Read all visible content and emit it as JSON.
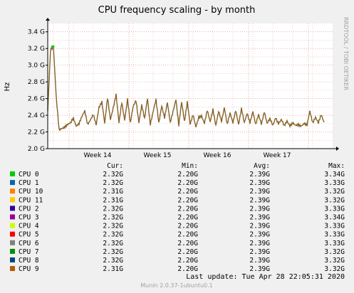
{
  "chart_data": {
    "type": "line",
    "title": "CPU frequency scaling - by month",
    "ylabel": "Hz",
    "side_label": "RRDTOOL / TOBI OETIKER",
    "ylim": [
      2.0,
      3.5
    ],
    "yticks": [
      {
        "value": 2.0,
        "label": "2.0 G"
      },
      {
        "value": 2.2,
        "label": "2.2 G"
      },
      {
        "value": 2.4,
        "label": "2.4 G"
      },
      {
        "value": 2.6,
        "label": "2.6 G"
      },
      {
        "value": 2.8,
        "label": "2.8 G"
      },
      {
        "value": 3.0,
        "label": "3.0 G"
      },
      {
        "value": 3.2,
        "label": "3.2 G"
      },
      {
        "value": 3.4,
        "label": "3.4 G"
      }
    ],
    "xticks": [
      "Week 14",
      "Week 15",
      "Week 16",
      "Week 17"
    ],
    "grid": true,
    "series_color": "#8a5a1e",
    "profile": [
      [
        0,
        2.45
      ],
      [
        1,
        3.2
      ],
      [
        2,
        3.22
      ],
      [
        3,
        2.6
      ],
      [
        4,
        2.22
      ],
      [
        5,
        2.25
      ],
      [
        8,
        2.3
      ],
      [
        9,
        2.37
      ],
      [
        10,
        2.28
      ],
      [
        11,
        2.3
      ],
      [
        13,
        2.45
      ],
      [
        14,
        2.3
      ],
      [
        16,
        2.4
      ],
      [
        17,
        2.28
      ],
      [
        18,
        2.5
      ],
      [
        19,
        2.57
      ],
      [
        20,
        2.3
      ],
      [
        21,
        2.6
      ],
      [
        22,
        2.35
      ],
      [
        23,
        2.5
      ],
      [
        24,
        2.65
      ],
      [
        25,
        2.3
      ],
      [
        26,
        2.55
      ],
      [
        27,
        2.35
      ],
      [
        28,
        2.6
      ],
      [
        29,
        2.3
      ],
      [
        30,
        2.5
      ],
      [
        31,
        2.58
      ],
      [
        32,
        2.32
      ],
      [
        33,
        2.52
      ],
      [
        34,
        2.35
      ],
      [
        35,
        2.6
      ],
      [
        36,
        2.3
      ],
      [
        37,
        2.45
      ],
      [
        38,
        2.58
      ],
      [
        39,
        2.3
      ],
      [
        40,
        2.52
      ],
      [
        41,
        2.38
      ],
      [
        42,
        2.55
      ],
      [
        43,
        2.3
      ],
      [
        44,
        2.45
      ],
      [
        45,
        2.6
      ],
      [
        46,
        2.28
      ],
      [
        47,
        2.55
      ],
      [
        48,
        2.32
      ],
      [
        49,
        2.57
      ],
      [
        50,
        2.3
      ],
      [
        51,
        2.4
      ],
      [
        52,
        2.25
      ],
      [
        53,
        2.38
      ],
      [
        54,
        2.4
      ],
      [
        55,
        2.3
      ],
      [
        56,
        2.45
      ],
      [
        57,
        2.32
      ],
      [
        58,
        2.48
      ],
      [
        59,
        2.28
      ],
      [
        60,
        2.44
      ],
      [
        61,
        2.32
      ],
      [
        62,
        2.5
      ],
      [
        63,
        2.3
      ],
      [
        64,
        2.42
      ],
      [
        65,
        2.3
      ],
      [
        66,
        2.46
      ],
      [
        67,
        2.3
      ],
      [
        68,
        2.48
      ],
      [
        69,
        2.3
      ],
      [
        70,
        2.42
      ],
      [
        71,
        2.32
      ],
      [
        72,
        2.45
      ],
      [
        73,
        2.28
      ],
      [
        74,
        2.4
      ],
      [
        75,
        2.3
      ],
      [
        76,
        2.45
      ],
      [
        77,
        2.3
      ],
      [
        78,
        2.35
      ],
      [
        79,
        2.28
      ],
      [
        80,
        2.38
      ],
      [
        81,
        2.3
      ],
      [
        82,
        2.34
      ],
      [
        83,
        2.27
      ],
      [
        84,
        2.34
      ],
      [
        85,
        2.28
      ],
      [
        86,
        2.3
      ],
      [
        87,
        2.27
      ],
      [
        88,
        2.29
      ],
      [
        89,
        2.28
      ],
      [
        90,
        2.3
      ],
      [
        91,
        2.27
      ],
      [
        92,
        2.45
      ],
      [
        93,
        2.32
      ],
      [
        94,
        2.38
      ],
      [
        95,
        2.3
      ],
      [
        96,
        2.4
      ],
      [
        97,
        2.32
      ]
    ],
    "peaks": [
      {
        "x": 1.8,
        "y": 3.22,
        "color": "#00cc00"
      }
    ]
  },
  "legend": {
    "headers": {
      "cur": "Cur:",
      "min": "Min:",
      "avg": "Avg:",
      "max": "Max:"
    },
    "rows": [
      {
        "name": "CPU 0",
        "color": "#00cc00",
        "cur": "2.32G",
        "min": "2.20G",
        "avg": "2.39G",
        "max": "3.34G"
      },
      {
        "name": "CPU 1",
        "color": "#0066b3",
        "cur": "2.32G",
        "min": "2.20G",
        "avg": "2.39G",
        "max": "3.33G"
      },
      {
        "name": "CPU 10",
        "color": "#ff8000",
        "cur": "2.31G",
        "min": "2.20G",
        "avg": "2.39G",
        "max": "3.32G"
      },
      {
        "name": "CPU 11",
        "color": "#ffcc00",
        "cur": "2.31G",
        "min": "2.20G",
        "avg": "2.39G",
        "max": "3.32G"
      },
      {
        "name": "CPU 2",
        "color": "#330099",
        "cur": "2.32G",
        "min": "2.20G",
        "avg": "2.39G",
        "max": "3.33G"
      },
      {
        "name": "CPU 3",
        "color": "#990099",
        "cur": "2.32G",
        "min": "2.20G",
        "avg": "2.39G",
        "max": "3.34G"
      },
      {
        "name": "CPU 4",
        "color": "#ccff00",
        "cur": "2.32G",
        "min": "2.20G",
        "avg": "2.39G",
        "max": "3.33G"
      },
      {
        "name": "CPU 5",
        "color": "#ff0000",
        "cur": "2.32G",
        "min": "2.20G",
        "avg": "2.39G",
        "max": "3.33G"
      },
      {
        "name": "CPU 6",
        "color": "#808080",
        "cur": "2.32G",
        "min": "2.20G",
        "avg": "2.39G",
        "max": "3.33G"
      },
      {
        "name": "CPU 7",
        "color": "#008f00",
        "cur": "2.32G",
        "min": "2.20G",
        "avg": "2.39G",
        "max": "3.32G"
      },
      {
        "name": "CPU 8",
        "color": "#00487d",
        "cur": "2.32G",
        "min": "2.20G",
        "avg": "2.39G",
        "max": "3.32G"
      },
      {
        "name": "CPU 9",
        "color": "#b35a00",
        "cur": "2.31G",
        "min": "2.20G",
        "avg": "2.39G",
        "max": "3.32G"
      }
    ]
  },
  "footer": {
    "last_update": "Last update: Tue Apr 28 22:05:31 2020",
    "version": "Munin 2.0.37-1ubuntu0.1"
  },
  "colors": {
    "background": "#f0f0f0",
    "plot_bg": "#ffffff",
    "grid_major": "#e08080",
    "grid_minor": "#e8b0b0",
    "axis": "#000000",
    "muted_text": "#a0a0a0"
  }
}
